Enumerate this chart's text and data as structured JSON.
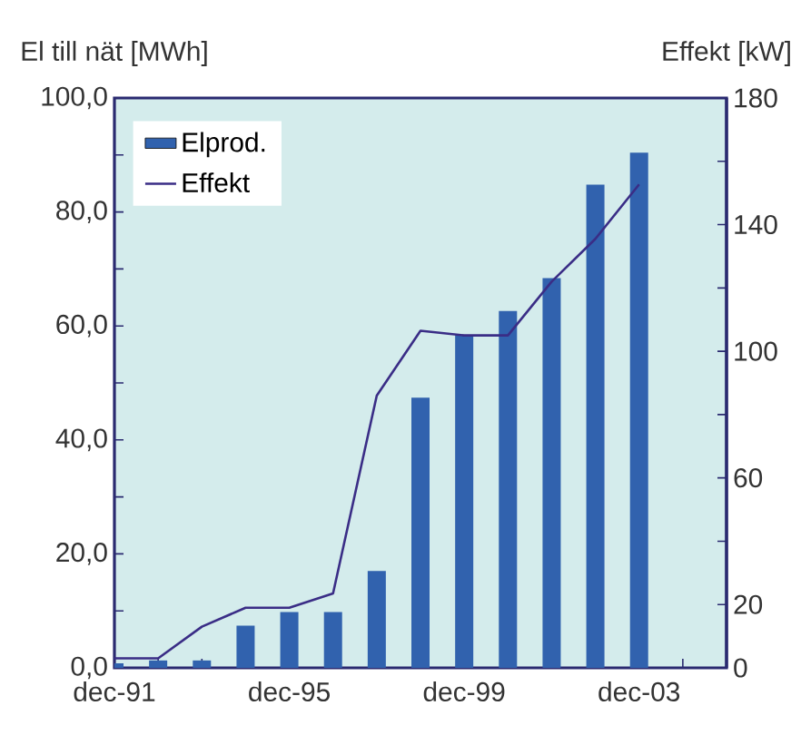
{
  "chart_data": {
    "type": "bar",
    "ylabel": "El till nät [MWh]",
    "y2label": "Effekt [kW]",
    "categories": [
      "dec-91",
      null,
      null,
      null,
      "dec-95",
      null,
      null,
      null,
      "dec-99",
      null,
      null,
      null,
      "dec-03",
      null,
      null
    ],
    "series": [
      {
        "name": "Elprod.",
        "color": "#3162ae",
        "values": [
          0.8,
          1.3,
          1.3,
          7.4,
          9.8,
          9.8,
          17,
          47.4,
          58.4,
          62.6,
          68.4,
          84.8,
          90.4,
          null,
          null
        ]
      },
      {
        "name": "Effekt",
        "type": "line",
        "axis": "y2",
        "color": "#3a2d86",
        "values": [
          3,
          3,
          13,
          19,
          19,
          23.5,
          86,
          106.5,
          105,
          105,
          122,
          135.5,
          152.7,
          null,
          null
        ]
      }
    ],
    "ylim": [
      0,
      100
    ],
    "yticks": [
      {
        "value": 0,
        "label": "0,0"
      },
      {
        "value": 10,
        "label": null
      },
      {
        "value": 20,
        "label": "20,0"
      },
      {
        "value": 30,
        "label": null
      },
      {
        "value": 40,
        "label": "40,0"
      },
      {
        "value": 50,
        "label": null
      },
      {
        "value": 60,
        "label": "60,0"
      },
      {
        "value": 70,
        "label": null
      },
      {
        "value": 80,
        "label": "80,0"
      },
      {
        "value": 90,
        "label": null
      },
      {
        "value": 100,
        "label": "100,0"
      }
    ],
    "y2lim": [
      0,
      180
    ],
    "y2ticks": [
      0,
      20,
      {
        "value": 40,
        "label": null
      },
      60,
      {
        "value": 80,
        "label": null
      },
      100,
      {
        "value": 120,
        "label": null
      },
      140,
      {
        "value": 160,
        "label": null
      },
      180
    ],
    "legend": "top left",
    "marker": "none"
  }
}
